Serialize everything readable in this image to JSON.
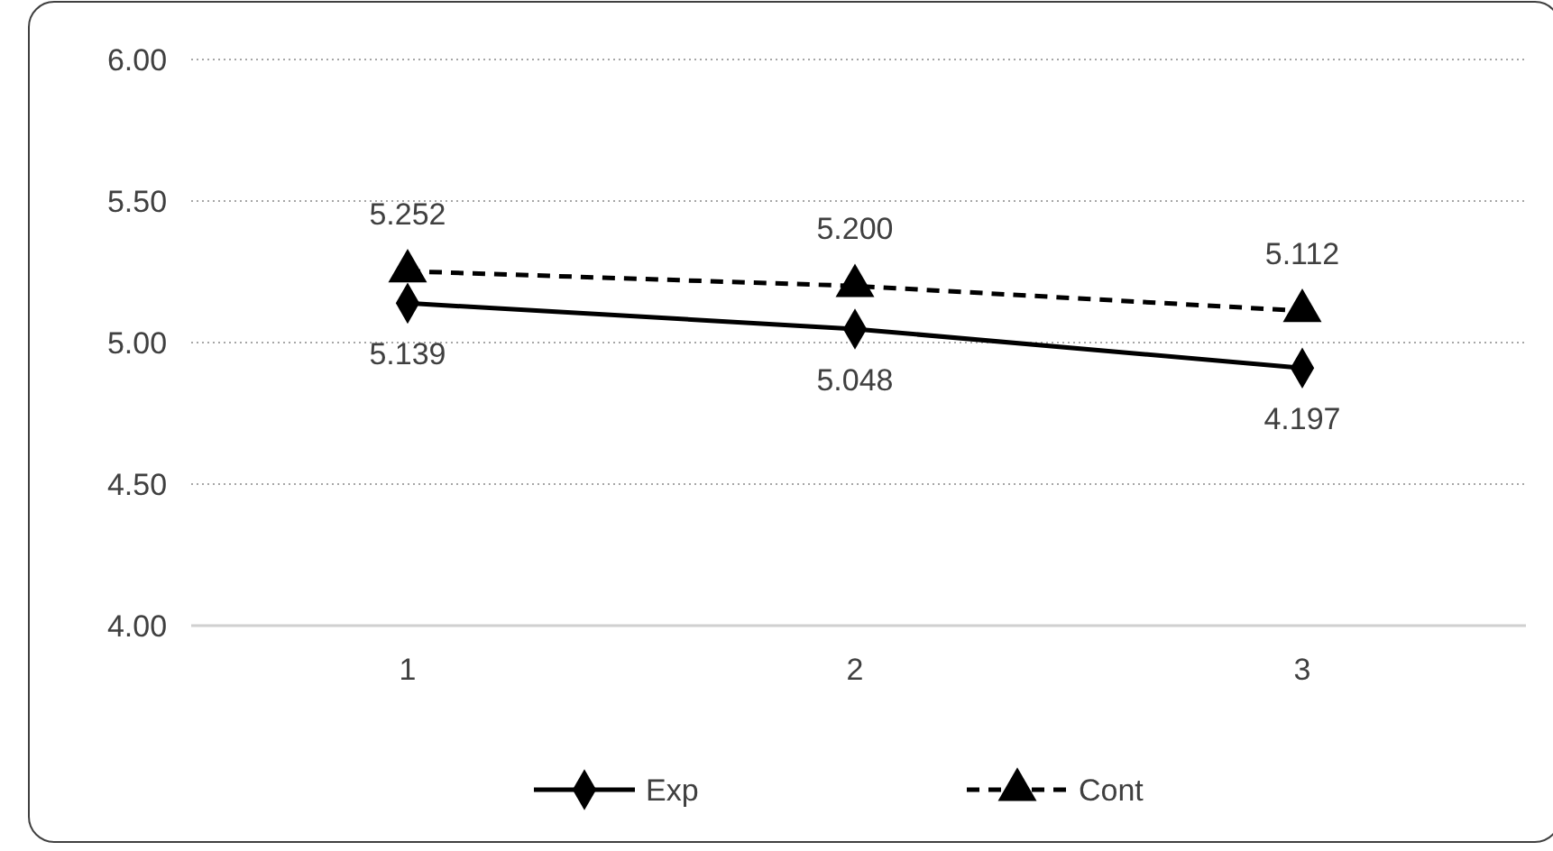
{
  "chart_data": {
    "type": "line",
    "categories": [
      "1",
      "2",
      "3"
    ],
    "series": [
      {
        "name": "Exp",
        "color": "#000000",
        "values": [
          5.139,
          5.048,
          4.91
        ],
        "value_labels": [
          "5.139",
          "5.048",
          null
        ],
        "marker": "diamond",
        "line_style": "solid"
      },
      {
        "name": "Cont",
        "color": "#000000",
        "values": [
          5.252,
          5.2,
          5.112
        ],
        "value_labels": [
          "5.252",
          "5.200",
          "5.112"
        ],
        "marker": "triangle",
        "line_style": "dashed"
      }
    ],
    "ylim": [
      4,
      6
    ],
    "yticks": [
      {
        "value": 4,
        "label": "4.00"
      },
      {
        "value": 4.5,
        "label": "4.50"
      },
      {
        "value": 5,
        "label": "5.00"
      },
      {
        "value": 5.5,
        "label": "5.50"
      },
      {
        "value": 6,
        "label": "6.00"
      }
    ],
    "annotations": [
      {
        "text": "4.197",
        "x": "3",
        "y": 4.91
      }
    ],
    "grid": "y",
    "legend": "bottom"
  }
}
